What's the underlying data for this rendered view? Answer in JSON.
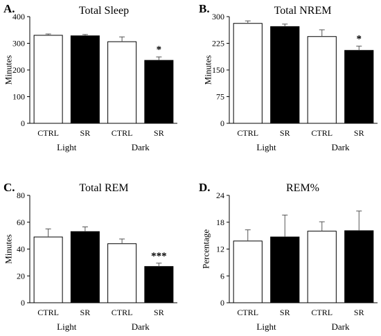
{
  "chart_data": [
    {
      "panel": "A.",
      "type": "bar",
      "title": "Total Sleep",
      "ylabel": "Minutes",
      "ylim": [
        0,
        400
      ],
      "yticks": [
        0,
        100,
        200,
        300,
        400
      ],
      "categories": [
        "CTRL",
        "SR",
        "CTRL",
        "SR"
      ],
      "groups": [
        "Light",
        "Dark"
      ],
      "values": [
        330,
        328,
        306,
        236
      ],
      "errors": [
        5,
        5,
        18,
        13
      ],
      "fills": [
        "white",
        "black",
        "white",
        "black"
      ],
      "significance": [
        "",
        "",
        "",
        "*"
      ]
    },
    {
      "panel": "B.",
      "type": "bar",
      "title": "Total NREM",
      "ylabel": "Minutes",
      "ylim": [
        0,
        300
      ],
      "yticks": [
        0,
        75,
        150,
        225,
        300
      ],
      "categories": [
        "CTRL",
        "SR",
        "CTRL",
        "SR"
      ],
      "groups": [
        "Light",
        "Dark"
      ],
      "values": [
        281,
        272,
        244,
        205
      ],
      "errors": [
        7,
        7,
        19,
        12
      ],
      "fills": [
        "white",
        "black",
        "white",
        "black"
      ],
      "significance": [
        "",
        "",
        "",
        "*"
      ]
    },
    {
      "panel": "C.",
      "type": "bar",
      "title": "Total REM",
      "ylabel": "Minutes",
      "ylim": [
        0,
        80
      ],
      "yticks": [
        0,
        20,
        40,
        60,
        80
      ],
      "categories": [
        "CTRL",
        "SR",
        "CTRL",
        "SR"
      ],
      "groups": [
        "Light",
        "Dark"
      ],
      "values": [
        49,
        53,
        44,
        27
      ],
      "errors": [
        6,
        3.5,
        3.5,
        2.5
      ],
      "fills": [
        "white",
        "black",
        "white",
        "black"
      ],
      "significance": [
        "",
        "",
        "",
        "***"
      ]
    },
    {
      "panel": "D.",
      "type": "bar",
      "title": "REM%",
      "ylabel": "Percentage",
      "ylim": [
        0,
        24
      ],
      "yticks": [
        0,
        6,
        12,
        18,
        24
      ],
      "categories": [
        "CTRL",
        "SR",
        "CTRL",
        "SR"
      ],
      "groups": [
        "Light",
        "Dark"
      ],
      "values": [
        13.8,
        14.7,
        16.0,
        16.1
      ],
      "errors": [
        2.5,
        4.9,
        2.1,
        4.4
      ],
      "fills": [
        "white",
        "black",
        "white",
        "black"
      ],
      "significance": [
        "",
        "",
        "",
        ""
      ]
    }
  ]
}
